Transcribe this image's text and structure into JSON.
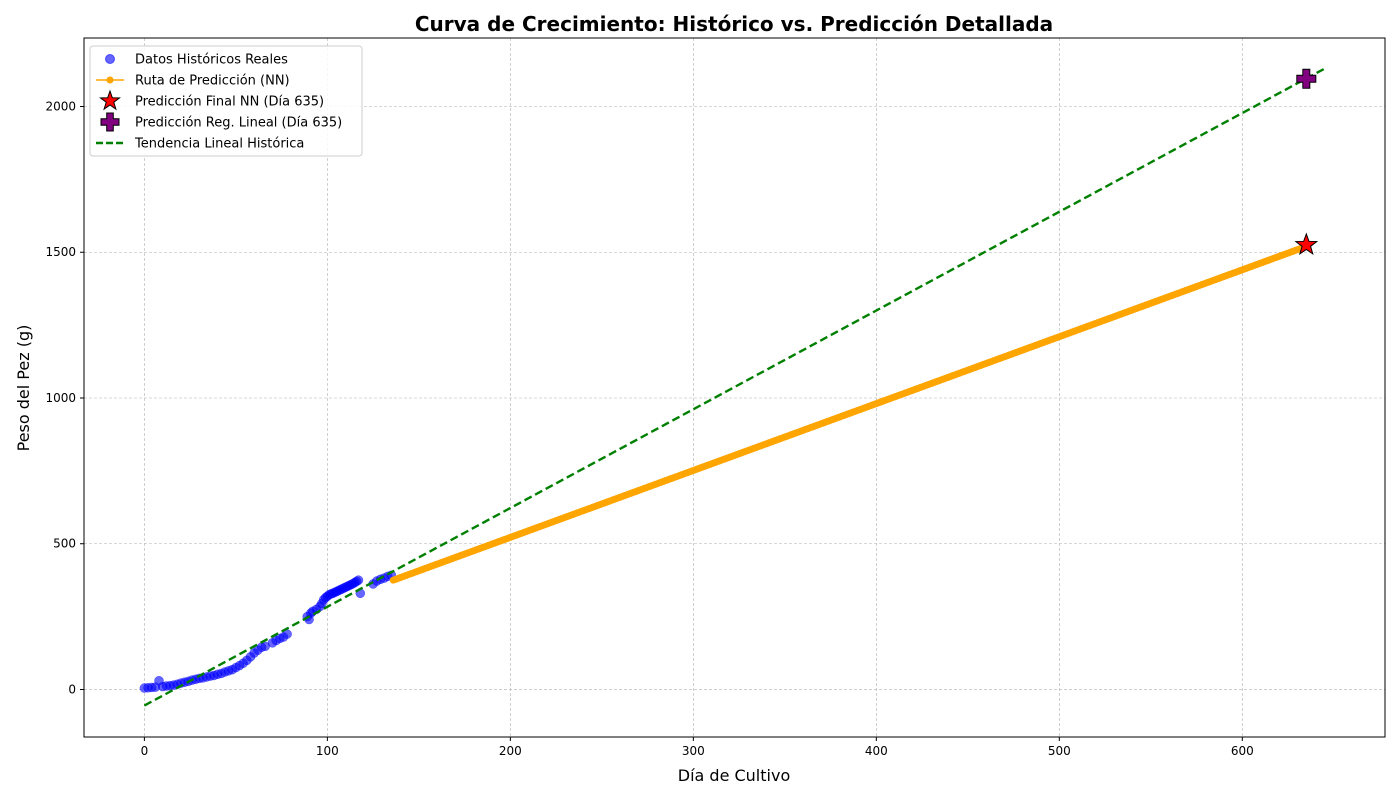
{
  "chart_data": {
    "type": "scatter",
    "title": "Curva de Crecimiento: Histórico vs. Predicción Detallada",
    "xlabel": "Día de Cultivo",
    "ylabel": "Peso del Pez (g)",
    "xlim": [
      -33,
      678
    ],
    "ylim": [
      -163,
      2235
    ],
    "xticks": [
      0,
      100,
      200,
      300,
      400,
      500,
      600
    ],
    "yticks": [
      0,
      500,
      1000,
      1500,
      2000
    ],
    "grid": true,
    "legend_position": "top-left",
    "series": [
      {
        "name": "Datos Históricos Reales",
        "kind": "scatter",
        "color": "#0000ff",
        "points": [
          [
            0,
            5
          ],
          [
            2,
            6
          ],
          [
            4,
            7
          ],
          [
            6,
            8
          ],
          [
            8,
            30
          ],
          [
            10,
            10
          ],
          [
            12,
            12
          ],
          [
            14,
            13
          ],
          [
            16,
            15
          ],
          [
            18,
            18
          ],
          [
            20,
            22
          ],
          [
            22,
            25
          ],
          [
            24,
            28
          ],
          [
            26,
            32
          ],
          [
            28,
            35
          ],
          [
            30,
            38
          ],
          [
            32,
            40
          ],
          [
            34,
            43
          ],
          [
            36,
            46
          ],
          [
            38,
            48
          ],
          [
            40,
            52
          ],
          [
            42,
            55
          ],
          [
            44,
            60
          ],
          [
            46,
            64
          ],
          [
            48,
            68
          ],
          [
            50,
            75
          ],
          [
            52,
            82
          ],
          [
            54,
            90
          ],
          [
            56,
            100
          ],
          [
            58,
            112
          ],
          [
            60,
            125
          ],
          [
            62,
            135
          ],
          [
            64,
            145
          ],
          [
            66,
            148
          ],
          [
            70,
            160
          ],
          [
            72,
            168
          ],
          [
            74,
            175
          ],
          [
            76,
            180
          ],
          [
            78,
            190
          ],
          [
            89,
            250
          ],
          [
            90,
            240
          ],
          [
            91,
            262
          ],
          [
            92,
            268
          ],
          [
            94,
            275
          ],
          [
            96,
            285
          ],
          [
            97,
            295
          ],
          [
            98,
            308
          ],
          [
            99,
            315
          ],
          [
            100,
            320
          ],
          [
            101,
            325
          ],
          [
            102,
            328
          ],
          [
            103,
            330
          ],
          [
            104,
            333
          ],
          [
            105,
            336
          ],
          [
            106,
            339
          ],
          [
            107,
            342
          ],
          [
            108,
            345
          ],
          [
            109,
            348
          ],
          [
            110,
            351
          ],
          [
            111,
            354
          ],
          [
            112,
            357
          ],
          [
            113,
            360
          ],
          [
            114,
            363
          ],
          [
            115,
            367
          ],
          [
            116,
            371
          ],
          [
            117,
            375
          ],
          [
            118,
            330
          ],
          [
            125,
            362
          ],
          [
            127,
            372
          ],
          [
            129,
            378
          ],
          [
            131,
            382
          ],
          [
            133,
            388
          ],
          [
            135,
            392
          ]
        ]
      },
      {
        "name": "Ruta de Predicción (NN)",
        "kind": "line",
        "color": "#ffa500",
        "x_start": 136,
        "x_end": 635,
        "y_start": 375,
        "y_end": 1520
      },
      {
        "name": "Predicción Final NN (Día 635)",
        "kind": "marker",
        "marker": "star",
        "color": "#ff0000",
        "x": 635,
        "y": 1525
      },
      {
        "name": "Predicción Reg. Lineal (Día 635)",
        "kind": "marker",
        "marker": "plus",
        "color": "#800080",
        "x": 635,
        "y": 2095
      },
      {
        "name": "Tendencia Lineal Histórica",
        "kind": "dashed-line",
        "color": "#008000",
        "x_start": 0,
        "x_end": 645,
        "y_start": -55,
        "y_end": 2130
      }
    ]
  }
}
